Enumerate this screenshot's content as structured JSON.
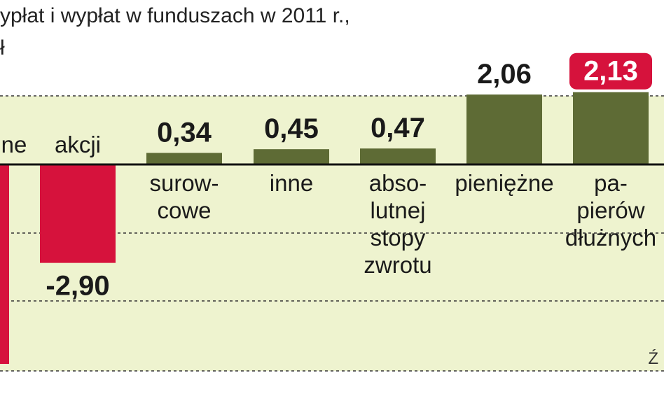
{
  "header": {
    "title_line1": "ypłat i wypłat w funduszach w 2011 r.,",
    "title_line2": "ł",
    "source_fragment": "Ź"
  },
  "colors": {
    "positive": "#5e6b35",
    "negative": "#d6123c",
    "highlight_badge": "#d6123c",
    "background_band": "#eef3cf",
    "axis": "#111111"
  },
  "chart_data": {
    "type": "bar",
    "categories": [
      [
        "ne"
      ],
      [
        "akcji"
      ],
      [
        "surow-",
        "cowe"
      ],
      [
        "inne"
      ],
      [
        "abso-",
        "lutnej",
        "stopy",
        "zwrotu"
      ],
      [
        "pieniężne"
      ],
      [
        "pa-",
        "pierów",
        "dłużnych"
      ]
    ],
    "values": [
      null,
      -2.9,
      0.34,
      0.45,
      0.47,
      2.06,
      2.13
    ],
    "value_labels": [
      "",
      "-2,90",
      "0,34",
      "0,45",
      "0,47",
      "2,06",
      "2,13"
    ],
    "highlighted_index": 6,
    "ylim": [
      -3.0,
      2.4
    ]
  }
}
